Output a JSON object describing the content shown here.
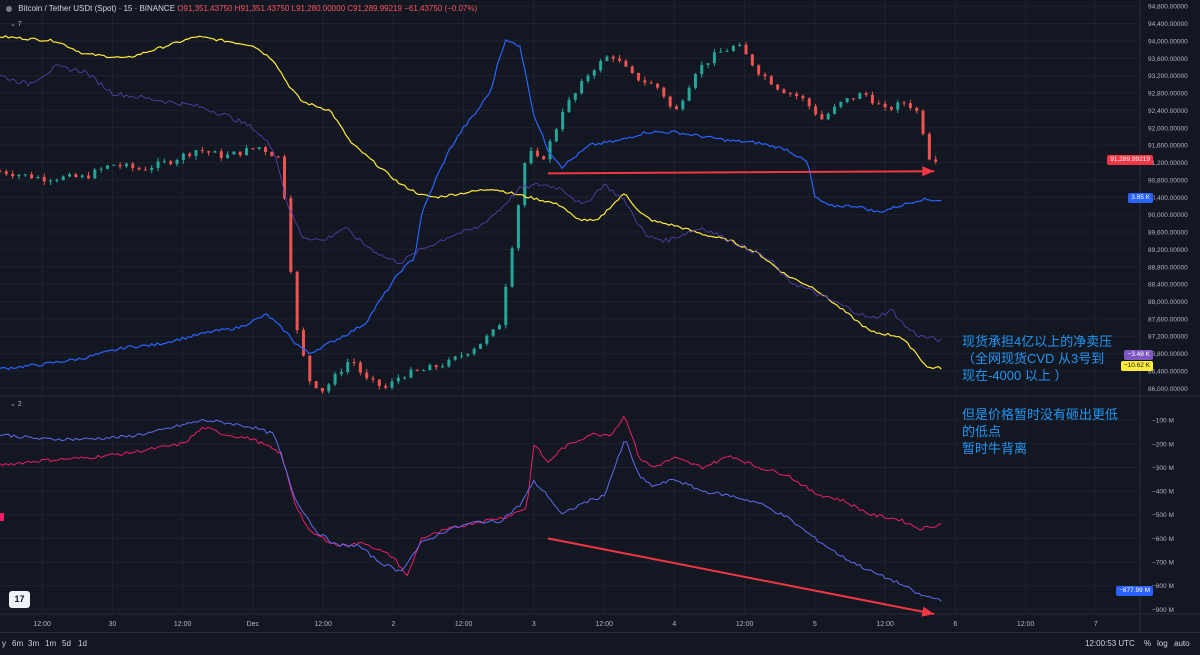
{
  "header": {
    "symbol": "Bitcoin / Tether USDt (Spot) · 15 · BINANCE",
    "open": "O91,351.43750",
    "high": "H91,351.43750",
    "low": "L91,280.00000",
    "close": "C91,289.99219",
    "change": "−61.43750 (−0.07%)",
    "pane1_label": "⌄ 7",
    "pane2_label": "⌄ 2"
  },
  "colors": {
    "background": "#131722",
    "up": "#26a69a",
    "down": "#ef5350",
    "yellow": "#ffeb3b",
    "blue": "#2962ff",
    "purple": "#5b3fb5",
    "crimson": "#e91e63",
    "arrow": "#f23645",
    "annotation": "#2196f3"
  },
  "badges": {
    "price": "91,289.99219",
    "blue": "3.85 K",
    "purple": "−3.48 K",
    "yellow": "−10.62 K",
    "lower_blue": "−877.99 M"
  },
  "annotations": {
    "upper_lines": [
      "现货承担4亿以上的净卖压",
      "（全网现货CVD 从3号到",
      "现在-4000 以上 ）"
    ],
    "lower_lines": [
      "但是价格暂时没有砸出更低",
      "的低点",
      "暂时牛背离"
    ]
  },
  "bottom_bar": {
    "periods": [
      "y",
      "6m",
      "3m",
      "1m",
      "5d",
      "1d"
    ],
    "time": "12:00:53 UTC",
    "percent": "%",
    "log": "log",
    "auto": "auto"
  },
  "chart_data": {
    "type": "line",
    "title": "Bitcoin / Tether USDt (Spot) · 15 · BINANCE",
    "x": {
      "ticks": [
        "12:00",
        "30",
        "12:00",
        "Dec",
        "12:00",
        "2",
        "12:00",
        "3",
        "12:00",
        "4",
        "12:00",
        "5",
        "12:00",
        "6",
        "12:00",
        "7"
      ],
      "range_days": [
        0,
        8.1
      ]
    },
    "price_axis": {
      "ticks": [
        "94,800.00000",
        "94,400.00000",
        "94,000.00000",
        "93,600.00000",
        "93,200.00000",
        "92,800.00000",
        "92,400.00000",
        "92,000.00000",
        "91,600.00000",
        "91,200.00000",
        "90,800.00000",
        "90,400.00000",
        "90,000.00000",
        "89,600.00000",
        "89,200.00000",
        "88,800.00000",
        "88,400.00000",
        "88,000.00000",
        "87,600.00000",
        "87,200.00000",
        "86,800.00000",
        "86,400.00000",
        "86,000.00000"
      ],
      "range": [
        85870,
        94850
      ]
    },
    "lower_axis": {
      "ticks": [
        "−100 M",
        "−200 M",
        "−300 M",
        "−400 M",
        "−500 M",
        "−600 M",
        "−700 M",
        "−800 M",
        "−900 M"
      ],
      "range": [
        -920,
        -40
      ]
    },
    "upper_series": [
      {
        "name": "BTCUSDT price",
        "style": "candles",
        "points": [
          [
            0.0,
            91000
          ],
          [
            0.3,
            90840
          ],
          [
            0.6,
            90860
          ],
          [
            0.8,
            91160
          ],
          [
            1.0,
            91040
          ],
          [
            1.2,
            91220
          ],
          [
            1.4,
            91500
          ],
          [
            1.6,
            91340
          ],
          [
            1.85,
            91560
          ],
          [
            2.0,
            91280
          ],
          [
            2.05,
            89600
          ],
          [
            2.1,
            87500
          ],
          [
            2.2,
            86200
          ],
          [
            2.3,
            85950
          ],
          [
            2.5,
            86700
          ],
          [
            2.6,
            86200
          ],
          [
            2.75,
            86000
          ],
          [
            2.85,
            86300
          ],
          [
            3.0,
            86400
          ],
          [
            3.2,
            86600
          ],
          [
            3.4,
            87000
          ],
          [
            3.55,
            87400
          ],
          [
            3.65,
            89400
          ],
          [
            3.75,
            91500
          ],
          [
            3.85,
            91200
          ],
          [
            3.95,
            91900
          ],
          [
            4.0,
            92400
          ],
          [
            4.1,
            92800
          ],
          [
            4.2,
            93300
          ],
          [
            4.35,
            93700
          ],
          [
            4.5,
            93200
          ],
          [
            4.7,
            92900
          ],
          [
            4.8,
            92300
          ],
          [
            4.95,
            93300
          ],
          [
            5.1,
            93700
          ],
          [
            5.25,
            93900
          ],
          [
            5.4,
            93300
          ],
          [
            5.55,
            92900
          ],
          [
            5.7,
            92700
          ],
          [
            5.85,
            92200
          ],
          [
            6.0,
            92600
          ],
          [
            6.15,
            92800
          ],
          [
            6.3,
            92400
          ],
          [
            6.45,
            92600
          ],
          [
            6.55,
            92300
          ],
          [
            6.6,
            91350
          ],
          [
            6.65,
            91300
          ],
          [
            6.7,
            91290
          ]
        ]
      },
      {
        "name": "Yellow CVD",
        "value_label": "−10.62 K",
        "points": [
          [
            0.0,
            94100
          ],
          [
            0.4,
            94000
          ],
          [
            0.6,
            93700
          ],
          [
            0.9,
            93600
          ],
          [
            1.0,
            93700
          ],
          [
            1.2,
            93900
          ],
          [
            1.4,
            94100
          ],
          [
            1.6,
            94000
          ],
          [
            1.8,
            93900
          ],
          [
            1.95,
            93550
          ],
          [
            2.05,
            93000
          ],
          [
            2.15,
            92600
          ],
          [
            2.35,
            92400
          ],
          [
            2.5,
            91650
          ],
          [
            2.7,
            91100
          ],
          [
            2.85,
            90700
          ],
          [
            3.0,
            90450
          ],
          [
            3.1,
            90400
          ],
          [
            3.3,
            90500
          ],
          [
            3.5,
            90600
          ],
          [
            3.7,
            90450
          ],
          [
            3.9,
            90300
          ],
          [
            4.0,
            90200
          ],
          [
            4.1,
            89900
          ],
          [
            4.25,
            89850
          ],
          [
            4.35,
            90200
          ],
          [
            4.45,
            90500
          ],
          [
            4.55,
            90050
          ],
          [
            4.65,
            89850
          ],
          [
            4.8,
            89750
          ],
          [
            5.0,
            89550
          ],
          [
            5.2,
            89400
          ],
          [
            5.4,
            89100
          ],
          [
            5.6,
            88600
          ],
          [
            5.8,
            88300
          ],
          [
            6.0,
            87800
          ],
          [
            6.2,
            87300
          ],
          [
            6.4,
            87200
          ],
          [
            6.5,
            86900
          ],
          [
            6.6,
            86480
          ],
          [
            6.7,
            86470
          ]
        ]
      },
      {
        "name": "Blue CVD",
        "value_label": "3.85 K",
        "points": [
          [
            0.0,
            86450
          ],
          [
            0.3,
            86550
          ],
          [
            0.6,
            86700
          ],
          [
            0.9,
            86950
          ],
          [
            1.1,
            87000
          ],
          [
            1.3,
            87150
          ],
          [
            1.5,
            87300
          ],
          [
            1.7,
            87400
          ],
          [
            1.9,
            87700
          ],
          [
            2.0,
            87400
          ],
          [
            2.05,
            87250
          ],
          [
            2.1,
            87050
          ],
          [
            2.2,
            86800
          ],
          [
            2.35,
            87050
          ],
          [
            2.5,
            87300
          ],
          [
            2.6,
            87500
          ],
          [
            2.7,
            88000
          ],
          [
            2.85,
            88700
          ],
          [
            2.95,
            89000
          ],
          [
            3.0,
            90000
          ],
          [
            3.1,
            90800
          ],
          [
            3.2,
            91500
          ],
          [
            3.3,
            92000
          ],
          [
            3.4,
            92400
          ],
          [
            3.5,
            92900
          ],
          [
            3.55,
            93600
          ],
          [
            3.6,
            94000
          ],
          [
            3.7,
            93900
          ],
          [
            3.8,
            92300
          ],
          [
            3.9,
            91500
          ],
          [
            4.0,
            91100
          ],
          [
            4.2,
            91600
          ],
          [
            4.4,
            91700
          ],
          [
            4.6,
            91900
          ],
          [
            4.8,
            91900
          ],
          [
            5.0,
            91800
          ],
          [
            5.2,
            91700
          ],
          [
            5.4,
            91650
          ],
          [
            5.6,
            91500
          ],
          [
            5.75,
            91200
          ],
          [
            5.8,
            90400
          ],
          [
            5.9,
            90200
          ],
          [
            6.1,
            90200
          ],
          [
            6.25,
            90050
          ],
          [
            6.4,
            90200
          ],
          [
            6.55,
            90350
          ],
          [
            6.7,
            90330
          ]
        ]
      },
      {
        "name": "Purple CVD",
        "value_label": "−3.48 K",
        "points": [
          [
            0.0,
            93200
          ],
          [
            0.2,
            93000
          ],
          [
            0.4,
            93400
          ],
          [
            0.6,
            93300
          ],
          [
            0.8,
            92800
          ],
          [
            1.0,
            92700
          ],
          [
            1.2,
            92600
          ],
          [
            1.4,
            92500
          ],
          [
            1.6,
            92300
          ],
          [
            1.8,
            92000
          ],
          [
            1.95,
            91500
          ],
          [
            2.05,
            90200
          ],
          [
            2.15,
            89500
          ],
          [
            2.3,
            89400
          ],
          [
            2.45,
            89700
          ],
          [
            2.6,
            89300
          ],
          [
            2.75,
            89000
          ],
          [
            2.85,
            88900
          ],
          [
            3.0,
            89200
          ],
          [
            3.2,
            89500
          ],
          [
            3.4,
            89700
          ],
          [
            3.55,
            90100
          ],
          [
            3.7,
            90600
          ],
          [
            3.85,
            90700
          ],
          [
            4.0,
            90600
          ],
          [
            4.15,
            90200
          ],
          [
            4.3,
            90700
          ],
          [
            4.45,
            90300
          ],
          [
            4.6,
            89500
          ],
          [
            4.75,
            89400
          ],
          [
            4.9,
            89600
          ],
          [
            5.0,
            89700
          ],
          [
            5.2,
            89400
          ],
          [
            5.4,
            89100
          ],
          [
            5.5,
            88900
          ],
          [
            5.6,
            88500
          ],
          [
            5.8,
            88200
          ],
          [
            6.0,
            87900
          ],
          [
            6.2,
            87600
          ],
          [
            6.35,
            87800
          ],
          [
            6.45,
            87400
          ],
          [
            6.55,
            87200
          ],
          [
            6.7,
            87100
          ]
        ]
      }
    ],
    "lower_series": [
      {
        "name": "Crimson CVD",
        "points": [
          [
            0.0,
            -290
          ],
          [
            0.3,
            -270
          ],
          [
            0.6,
            -260
          ],
          [
            0.9,
            -240
          ],
          [
            1.1,
            -220
          ],
          [
            1.3,
            -200
          ],
          [
            1.45,
            -130
          ],
          [
            1.6,
            -160
          ],
          [
            1.8,
            -180
          ],
          [
            2.0,
            -240
          ],
          [
            2.1,
            -450
          ],
          [
            2.2,
            -570
          ],
          [
            2.4,
            -630
          ],
          [
            2.6,
            -620
          ],
          [
            2.8,
            -680
          ],
          [
            2.9,
            -760
          ],
          [
            3.0,
            -600
          ],
          [
            3.2,
            -560
          ],
          [
            3.4,
            -530
          ],
          [
            3.6,
            -510
          ],
          [
            3.75,
            -470
          ],
          [
            3.8,
            -200
          ],
          [
            3.9,
            -280
          ],
          [
            4.0,
            -220
          ],
          [
            4.2,
            -160
          ],
          [
            4.35,
            -160
          ],
          [
            4.45,
            -80
          ],
          [
            4.55,
            -260
          ],
          [
            4.65,
            -300
          ],
          [
            4.8,
            -260
          ],
          [
            5.0,
            -300
          ],
          [
            5.2,
            -250
          ],
          [
            5.4,
            -300
          ],
          [
            5.6,
            -330
          ],
          [
            5.8,
            -410
          ],
          [
            6.0,
            -440
          ],
          [
            6.2,
            -500
          ],
          [
            6.4,
            -520
          ],
          [
            6.55,
            -560
          ],
          [
            6.7,
            -540
          ]
        ]
      },
      {
        "name": "Blue CVD (lower)",
        "value_label": "−877.99 M",
        "points": [
          [
            0.0,
            -160
          ],
          [
            0.3,
            -180
          ],
          [
            0.6,
            -180
          ],
          [
            0.9,
            -170
          ],
          [
            1.1,
            -150
          ],
          [
            1.3,
            -120
          ],
          [
            1.45,
            -100
          ],
          [
            1.6,
            -110
          ],
          [
            1.8,
            -130
          ],
          [
            1.95,
            -160
          ],
          [
            2.1,
            -430
          ],
          [
            2.25,
            -570
          ],
          [
            2.4,
            -630
          ],
          [
            2.55,
            -630
          ],
          [
            2.7,
            -700
          ],
          [
            2.85,
            -740
          ],
          [
            3.0,
            -620
          ],
          [
            3.2,
            -560
          ],
          [
            3.4,
            -530
          ],
          [
            3.55,
            -530
          ],
          [
            3.7,
            -460
          ],
          [
            3.8,
            -360
          ],
          [
            3.9,
            -420
          ],
          [
            4.0,
            -500
          ],
          [
            4.15,
            -450
          ],
          [
            4.3,
            -420
          ],
          [
            4.45,
            -180
          ],
          [
            4.55,
            -340
          ],
          [
            4.65,
            -380
          ],
          [
            4.8,
            -350
          ],
          [
            5.0,
            -400
          ],
          [
            5.2,
            -420
          ],
          [
            5.4,
            -450
          ],
          [
            5.6,
            -510
          ],
          [
            5.8,
            -600
          ],
          [
            6.0,
            -680
          ],
          [
            6.2,
            -740
          ],
          [
            6.4,
            -790
          ],
          [
            6.55,
            -840
          ],
          [
            6.7,
            -860
          ]
        ]
      }
    ],
    "arrows": [
      {
        "pane": "upper",
        "from": [
          3.9,
          90950
        ],
        "to": [
          6.65,
          91000
        ]
      },
      {
        "pane": "lower",
        "from": [
          3.9,
          -600
        ],
        "to": [
          6.65,
          -920
        ]
      }
    ]
  }
}
